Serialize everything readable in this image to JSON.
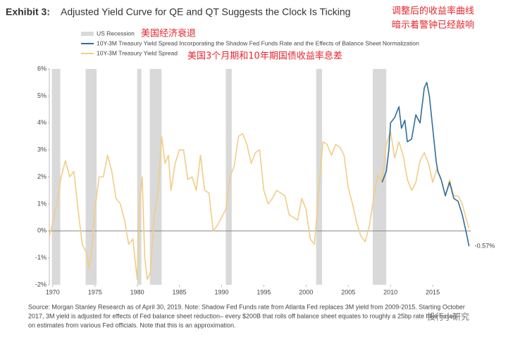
{
  "chart_data": {
    "type": "line",
    "title_prefix": "Exhibit 3:",
    "title": "Adjusted Yield Curve for QE and QT Suggests the Clock Is Ticking",
    "annotations_cn": [
      "调整后的收益率曲线",
      "暗示着警钟已经敲响",
      "美国经济衰退",
      "美国3个月期和10年期国债收益率息差"
    ],
    "source": [
      "Source: Morgan Stanley Research as of April 30, 2019. Note: Shadow Fed Funds rate from Atlanta Fed replaces 3M yield from 2009-2015. Starting October",
      "2017, 3M yield is adjusted for effects of Fed balance sheet reduction– every $200B that rolls off balance sheet equates to roughly a 25bp rate hike based",
      "on estimates from various Fed officials. Note that this is an approximation."
    ],
    "watermark": "投行小研究",
    "recessions": {
      "name": "US Recession",
      "color": "#d9d9d9",
      "periods": [
        [
          1969.9,
          1970.9
        ],
        [
          1973.9,
          1975.2
        ],
        [
          1980.0,
          1980.5
        ],
        [
          1981.5,
          1982.9
        ],
        [
          1990.5,
          1991.2
        ],
        [
          2001.2,
          2001.9
        ],
        [
          2007.9,
          2009.5
        ]
      ]
    },
    "series": [
      {
        "name": "10Y-3M Treasury Yield Spread Incorporating the Shadow Fed Funds Rate and the Effects of Balance Sheet Normalization",
        "color": "#2e6e9e",
        "x": [
          2009.0,
          2009.5,
          2009.8,
          2010.0,
          2010.5,
          2011.0,
          2011.3,
          2011.7,
          2012.0,
          2012.5,
          2013.0,
          2013.5,
          2014.0,
          2014.3,
          2014.6,
          2015.0,
          2015.4,
          2015.6,
          2016.0,
          2016.5,
          2017.0,
          2017.5,
          2018.0,
          2018.5,
          2019.0,
          2019.3
        ],
        "values": [
          1.8,
          2.2,
          3.0,
          4.0,
          4.2,
          4.6,
          3.8,
          4.1,
          3.3,
          3.4,
          4.3,
          4.0,
          5.3,
          5.5,
          5.0,
          3.8,
          2.6,
          2.2,
          1.9,
          1.3,
          1.8,
          1.2,
          1.1,
          0.6,
          -0.1,
          -0.57
        ],
        "value_labels": [
          null,
          null,
          null,
          null,
          null,
          null,
          null,
          null,
          null,
          null,
          null,
          null,
          null,
          null,
          null,
          null,
          null,
          null,
          null,
          null,
          null,
          null,
          null,
          null,
          null,
          "-0.57%"
        ]
      },
      {
        "name": "10Y-3M Treasury Yield Spread",
        "color": "#f2cd86",
        "x": [
          1969.6,
          1970.0,
          1970.5,
          1971.0,
          1971.5,
          1972.0,
          1972.5,
          1973.0,
          1973.5,
          1974.0,
          1974.3,
          1974.7,
          1975.0,
          1975.5,
          1976.0,
          1976.5,
          1977.0,
          1977.5,
          1978.0,
          1978.5,
          1979.0,
          1979.5,
          1980.0,
          1980.3,
          1980.6,
          1980.9,
          1981.2,
          1981.6,
          1982.0,
          1982.5,
          1982.9,
          1983.3,
          1983.7,
          1984.0,
          1984.5,
          1985.0,
          1985.5,
          1986.0,
          1986.5,
          1987.0,
          1987.5,
          1988.0,
          1988.5,
          1989.0,
          1989.5,
          1990.0,
          1990.5,
          1991.0,
          1991.5,
          1992.0,
          1992.5,
          1993.0,
          1993.5,
          1994.0,
          1994.5,
          1995.0,
          1995.5,
          1996.0,
          1996.5,
          1997.0,
          1997.5,
          1998.0,
          1998.5,
          1999.0,
          1999.5,
          2000.0,
          2000.5,
          2001.0,
          2001.5,
          2002.0,
          2002.5,
          2003.0,
          2003.5,
          2004.0,
          2004.5,
          2005.0,
          2005.5,
          2006.0,
          2006.5,
          2007.0,
          2007.5,
          2008.0,
          2008.5,
          2009.0,
          2009.5,
          2010.0,
          2010.5,
          2011.0,
          2011.5,
          2012.0,
          2012.5,
          2013.0,
          2013.5,
          2014.0,
          2014.5,
          2015.0,
          2015.5,
          2016.0,
          2016.5,
          2017.0,
          2017.5,
          2018.0,
          2018.5,
          2019.0,
          2019.3
        ],
        "values": [
          -0.2,
          0.3,
          1.0,
          2.0,
          2.6,
          2.0,
          2.2,
          0.8,
          -0.5,
          -0.8,
          -1.4,
          -0.5,
          0.8,
          2.0,
          2.0,
          2.8,
          2.2,
          1.2,
          1.0,
          0.4,
          -0.5,
          -0.3,
          -1.8,
          1.0,
          2.0,
          -1.0,
          -1.8,
          -1.5,
          0.5,
          1.5,
          3.5,
          2.5,
          2.8,
          1.5,
          2.5,
          3.0,
          3.0,
          1.9,
          2.0,
          1.5,
          2.8,
          1.5,
          1.4,
          0.0,
          0.2,
          0.5,
          0.8,
          2.0,
          2.4,
          3.5,
          3.6,
          3.2,
          2.5,
          2.9,
          3.0,
          1.5,
          1.0,
          1.2,
          1.5,
          1.4,
          1.3,
          0.6,
          0.5,
          0.4,
          1.2,
          0.8,
          -0.3,
          -0.5,
          1.5,
          3.3,
          3.2,
          2.8,
          3.2,
          3.1,
          2.8,
          1.6,
          1.0,
          0.3,
          -0.2,
          -0.4,
          0.2,
          1.2,
          2.1,
          1.8,
          3.2,
          3.7,
          2.7,
          3.3,
          2.8,
          1.9,
          1.5,
          1.8,
          2.6,
          2.9,
          2.5,
          1.8,
          2.3,
          1.9,
          1.3,
          1.9,
          1.3,
          1.3,
          1.0,
          0.4,
          0.1
        ]
      }
    ],
    "xlim": [
      1969.6,
      2019.5
    ],
    "xticks": [
      1970,
      1975,
      1980,
      1985,
      1990,
      1995,
      2000,
      2005,
      2010,
      2015
    ],
    "ylim": [
      -2,
      6
    ],
    "yticks": [
      {
        "value": -2,
        "label": "-2%"
      },
      {
        "value": -1,
        "label": "-1%"
      },
      {
        "value": 0,
        "label": "0%"
      },
      {
        "value": 1,
        "label": "1%"
      },
      {
        "value": 2,
        "label": "2%"
      },
      {
        "value": 3,
        "label": "3%"
      },
      {
        "value": 4,
        "label": "4%"
      },
      {
        "value": 5,
        "label": "5%"
      },
      {
        "value": 6,
        "label": "6%"
      }
    ],
    "zero_line": true
  }
}
